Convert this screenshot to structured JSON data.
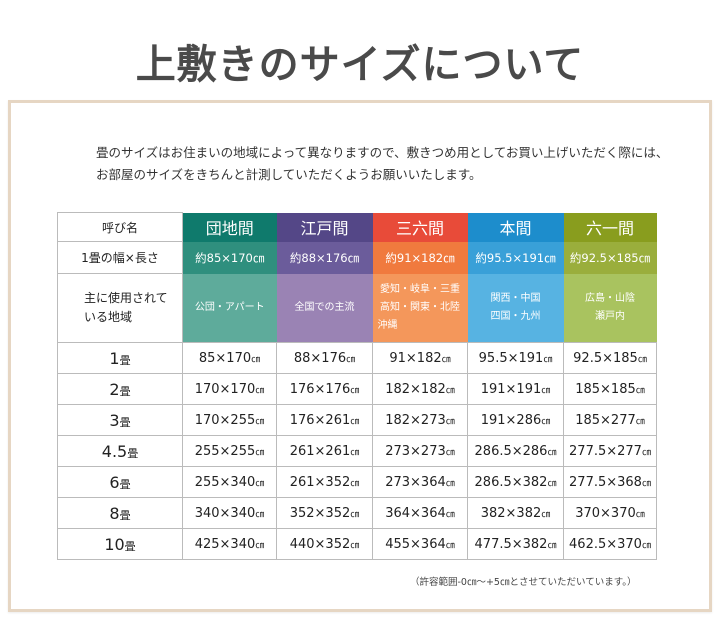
{
  "title": "上敷きのサイズについて",
  "intro": [
    "畳のサイズはお住まいの地域によって異なりますので、敷きつめ用としてお買い上げいただく際には、",
    "お部屋のサイズをきちんと計測していただくようお願いいたします。"
  ],
  "table": {
    "row_labels": {
      "name": "呼び名",
      "size": "1畳の幅×長さ",
      "region": [
        "主に使用されて",
        "いる地域"
      ]
    },
    "columns": [
      {
        "name": "団地間",
        "size": "約85×170㎝",
        "region": [
          "公団・アパート"
        ],
        "colors": {
          "header": "#0f7a6c",
          "size": "#2f8f7e",
          "region": "#5eab9b"
        }
      },
      {
        "name": "江戸間",
        "size": "約88×176㎝",
        "region": [
          "全国での主流"
        ],
        "colors": {
          "header": "#544787",
          "size": "#6b5c9b",
          "region": "#9a83b4"
        }
      },
      {
        "name": "三六間",
        "size": "約91×182㎝",
        "region": [
          "愛知・岐阜・三重",
          "高知・関東・北陸",
          "沖縄"
        ],
        "colors": {
          "header": "#e84b39",
          "size": "#f07a3e",
          "region": "#f4975b"
        }
      },
      {
        "name": "本間",
        "size": "約95.5×191㎝",
        "region": [
          "関西・中国",
          "四国・九州"
        ],
        "colors": {
          "header": "#1d8dcc",
          "size": "#39a0d8",
          "region": "#57b3e2"
        }
      },
      {
        "name": "六一間",
        "size": "約92.5×185㎝",
        "region": [
          "広島・山陰",
          "瀬戸内"
        ],
        "colors": {
          "header": "#899d1e",
          "size": "#9aae3c",
          "region": "#a9c35f"
        }
      }
    ],
    "unit": "畳",
    "cm": "㎝",
    "rows": [
      {
        "count": "1",
        "values": [
          "85×170",
          "88×176",
          "91×182",
          "95.5×191",
          "92.5×185"
        ]
      },
      {
        "count": "2",
        "values": [
          "170×170",
          "176×176",
          "182×182",
          "191×191",
          "185×185"
        ]
      },
      {
        "count": "3",
        "values": [
          "170×255",
          "176×261",
          "182×273",
          "191×286",
          "185×277"
        ]
      },
      {
        "count": "4.5",
        "values": [
          "255×255",
          "261×261",
          "273×273",
          "286.5×286",
          "277.5×277"
        ]
      },
      {
        "count": "6",
        "values": [
          "255×340",
          "261×352",
          "273×364",
          "286.5×382",
          "277.5×368"
        ]
      },
      {
        "count": "8",
        "values": [
          "340×340",
          "352×352",
          "364×364",
          "382×382",
          "370×370"
        ]
      },
      {
        "count": "10",
        "values": [
          "425×340",
          "440×352",
          "455×364",
          "477.5×382",
          "462.5×370"
        ]
      }
    ]
  },
  "note": "（許容範囲-0㎝～+5㎝とさせていただいています。）"
}
